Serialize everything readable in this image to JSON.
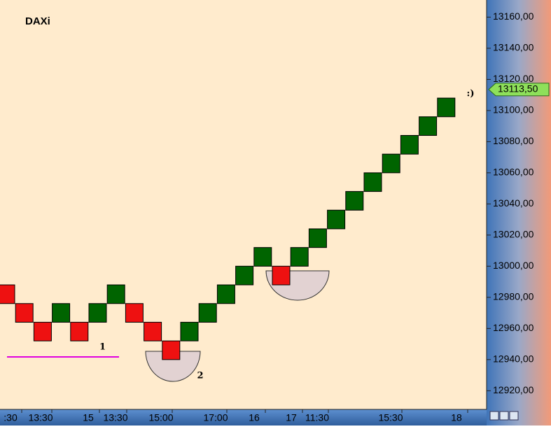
{
  "chart_data": {
    "type": "renko",
    "title": "DAXi",
    "bricks": [
      {
        "open": 12988,
        "close": 12976
      },
      {
        "open": 12976,
        "close": 12964
      },
      {
        "open": 12964,
        "close": 12952
      },
      {
        "open": 12964,
        "close": 12976
      },
      {
        "open": 12964,
        "close": 12952
      },
      {
        "open": 12964,
        "close": 12976
      },
      {
        "open": 12976,
        "close": 12988
      },
      {
        "open": 12976,
        "close": 12964
      },
      {
        "open": 12964,
        "close": 12952
      },
      {
        "open": 12952,
        "close": 12940
      },
      {
        "open": 12952,
        "close": 12964
      },
      {
        "open": 12964,
        "close": 12976
      },
      {
        "open": 12976,
        "close": 12988
      },
      {
        "open": 12988,
        "close": 13000
      },
      {
        "open": 13000,
        "close": 13012
      },
      {
        "open": 13000,
        "close": 12988
      },
      {
        "open": 13000,
        "close": 13012
      },
      {
        "open": 13012,
        "close": 13024
      },
      {
        "open": 13024,
        "close": 13036
      },
      {
        "open": 13036,
        "close": 13048
      },
      {
        "open": 13048,
        "close": 13060
      },
      {
        "open": 13060,
        "close": 13072
      },
      {
        "open": 13072,
        "close": 13084
      },
      {
        "open": 13084,
        "close": 13096
      },
      {
        "open": 13096,
        "close": 13108
      }
    ],
    "up_color": "#006400",
    "down_color": "#ee1111",
    "xlabels": [
      ":30",
      "13:30",
      "15",
      "13:30",
      "15:00",
      "17:00",
      "16",
      "17",
      "11:30",
      "15:30",
      "18"
    ],
    "ylim": [
      12908,
      13171
    ],
    "yticks": [
      {
        "value": 12920,
        "label": "12920,00"
      },
      {
        "value": 12940,
        "label": "12940,00"
      },
      {
        "value": 12960,
        "label": "12960,00"
      },
      {
        "value": 12980,
        "label": "12980,00"
      },
      {
        "value": 13000,
        "label": "13000,00"
      },
      {
        "value": 13020,
        "label": "13020,00"
      },
      {
        "value": 13040,
        "label": "13040,00"
      },
      {
        "value": 13060,
        "label": "13060,00"
      },
      {
        "value": 13080,
        "label": "13080,00"
      },
      {
        "value": 13100,
        "label": "13100,00"
      },
      {
        "value": 13120,
        "label": "13120,00"
      },
      {
        "value": 13140,
        "label": "13140,00"
      },
      {
        "value": 13160,
        "label": "13160,00"
      }
    ],
    "last_price": {
      "value": 13113.5,
      "label": "13113,50"
    },
    "annotations": [
      "1",
      "2",
      ":)"
    ]
  }
}
